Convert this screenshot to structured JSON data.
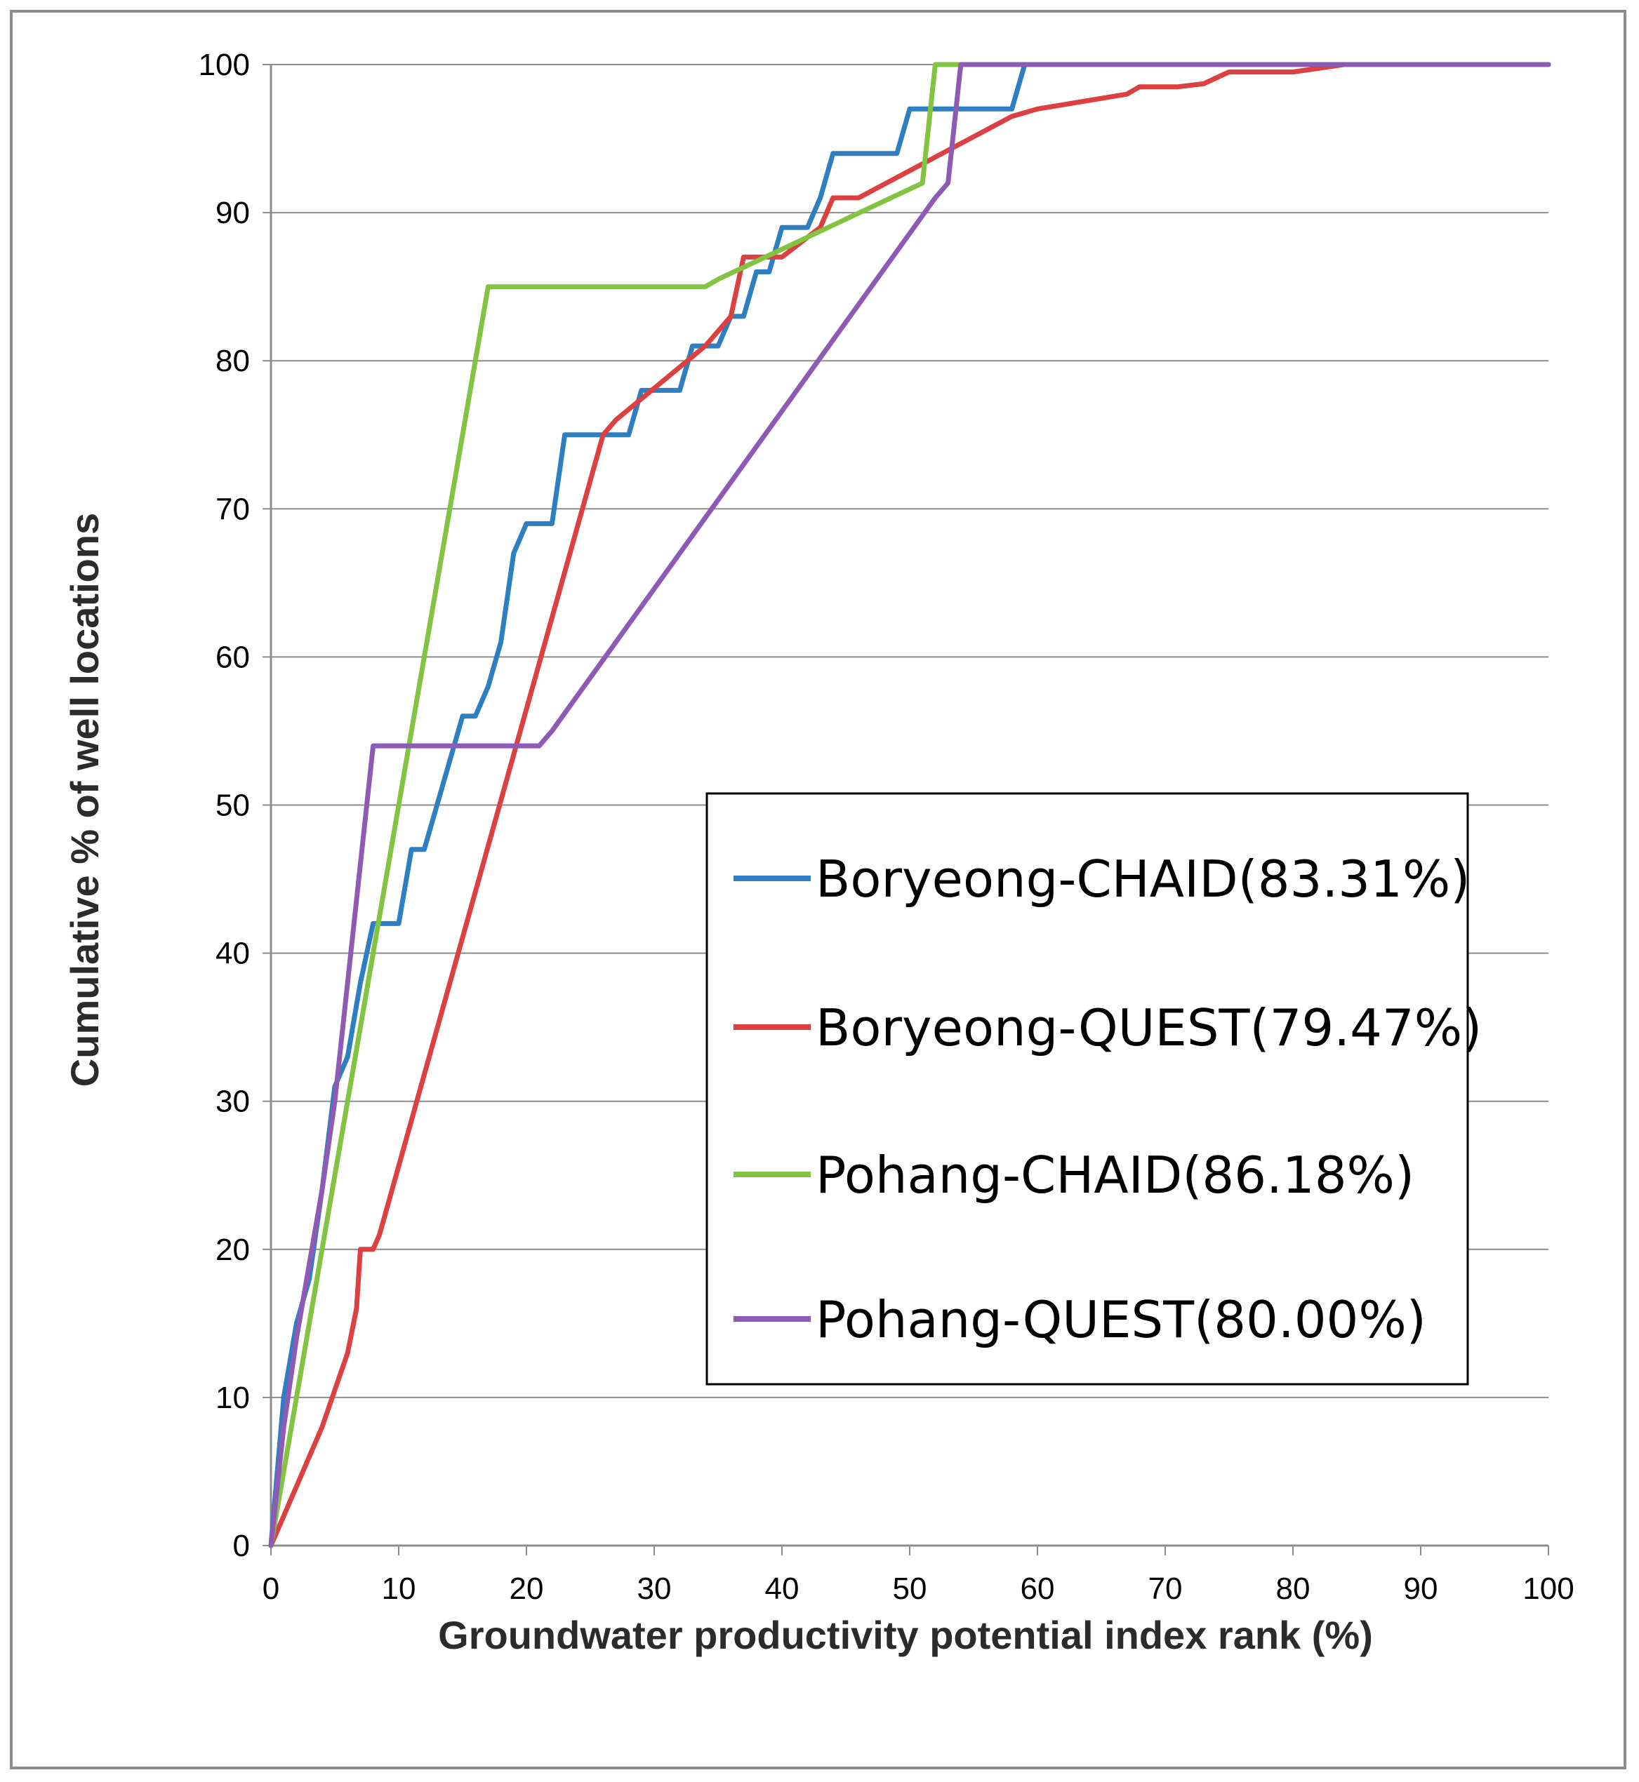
{
  "chart_data": {
    "type": "line",
    "xlabel": "Groundwater productivity potential index rank (%)",
    "ylabel": "Cumulative % of well locations",
    "xlim": [
      0,
      100
    ],
    "ylim": [
      0,
      100
    ],
    "xticks": [
      "0",
      "10",
      "20",
      "30",
      "40",
      "50",
      "60",
      "70",
      "80",
      "90",
      "100"
    ],
    "yticks": [
      "0",
      "10",
      "20",
      "30",
      "40",
      "50",
      "60",
      "70",
      "80",
      "90",
      "100"
    ],
    "grid": "horizontal",
    "legend_position": "center-right",
    "series": [
      {
        "name": "Boryeong-CHAID(83.31%)",
        "color": "#2e7fc2",
        "points": [
          [
            0,
            0
          ],
          [
            1,
            10
          ],
          [
            2,
            15
          ],
          [
            3,
            18
          ],
          [
            4,
            24
          ],
          [
            5,
            31
          ],
          [
            6,
            33
          ],
          [
            7,
            38
          ],
          [
            8,
            42
          ],
          [
            9,
            42
          ],
          [
            10,
            42
          ],
          [
            11,
            47
          ],
          [
            12,
            47
          ],
          [
            13,
            50
          ],
          [
            14,
            53
          ],
          [
            15,
            56
          ],
          [
            16,
            56
          ],
          [
            17,
            58
          ],
          [
            18,
            61
          ],
          [
            19,
            67
          ],
          [
            20,
            69
          ],
          [
            21,
            69
          ],
          [
            22,
            69
          ],
          [
            23,
            75
          ],
          [
            24,
            75
          ],
          [
            25,
            75
          ],
          [
            26,
            75
          ],
          [
            27,
            75
          ],
          [
            28,
            75
          ],
          [
            29,
            78
          ],
          [
            30,
            78
          ],
          [
            31,
            78
          ],
          [
            32,
            78
          ],
          [
            33,
            81
          ],
          [
            34,
            81
          ],
          [
            35,
            81
          ],
          [
            36,
            83
          ],
          [
            37,
            83
          ],
          [
            38,
            86
          ],
          [
            39,
            86
          ],
          [
            40,
            89
          ],
          [
            41,
            89
          ],
          [
            42,
            89
          ],
          [
            43,
            91
          ],
          [
            44,
            94
          ],
          [
            45,
            94
          ],
          [
            46,
            94
          ],
          [
            47,
            94
          ],
          [
            48,
            94
          ],
          [
            49,
            94
          ],
          [
            50,
            97
          ],
          [
            51,
            97
          ],
          [
            52,
            97
          ],
          [
            53,
            97
          ],
          [
            54,
            97
          ],
          [
            55,
            97
          ],
          [
            56,
            97
          ],
          [
            57,
            97
          ],
          [
            58,
            97
          ],
          [
            59,
            100
          ],
          [
            100,
            100
          ]
        ]
      },
      {
        "name": "Boryeong-QUEST(79.47%)",
        "color": "#dd4040",
        "points": [
          [
            0,
            0
          ],
          [
            2,
            4
          ],
          [
            4,
            8
          ],
          [
            6,
            13
          ],
          [
            6.7,
            16
          ],
          [
            7,
            20
          ],
          [
            8,
            20
          ],
          [
            8.5,
            21
          ],
          [
            26,
            75
          ],
          [
            27,
            76
          ],
          [
            34,
            81
          ],
          [
            36,
            83
          ],
          [
            37,
            87
          ],
          [
            38,
            87
          ],
          [
            40,
            87
          ],
          [
            43,
            89
          ],
          [
            44,
            91
          ],
          [
            45,
            91
          ],
          [
            46,
            91
          ],
          [
            58,
            96.5
          ],
          [
            60,
            97
          ],
          [
            67,
            98
          ],
          [
            68,
            98.5
          ],
          [
            71,
            98.5
          ],
          [
            73,
            98.7
          ],
          [
            75,
            99.5
          ],
          [
            80,
            99.5
          ],
          [
            84,
            100
          ],
          [
            100,
            100
          ]
        ]
      },
      {
        "name": "Pohang-CHAID(86.18%)",
        "color": "#82c341",
        "points": [
          [
            0,
            0
          ],
          [
            17,
            85
          ],
          [
            18,
            85
          ],
          [
            34,
            85
          ],
          [
            35,
            85.5
          ],
          [
            51,
            92
          ],
          [
            52,
            100
          ],
          [
            100,
            100
          ]
        ]
      },
      {
        "name": "Pohang-QUEST(80.00%)",
        "color": "#8e5bb4",
        "points": [
          [
            0,
            0
          ],
          [
            1,
            8
          ],
          [
            2,
            14
          ],
          [
            4,
            24
          ],
          [
            5,
            30
          ],
          [
            8,
            54
          ],
          [
            9,
            54
          ],
          [
            21,
            54
          ],
          [
            22,
            55
          ],
          [
            52,
            91
          ],
          [
            53,
            92
          ],
          [
            54,
            100
          ],
          [
            100,
            100
          ]
        ]
      }
    ]
  }
}
